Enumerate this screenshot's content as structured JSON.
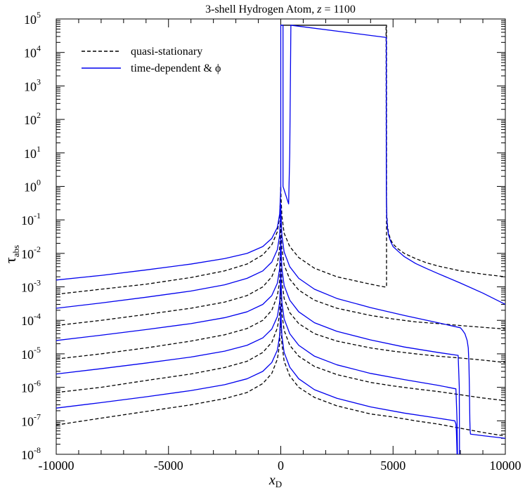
{
  "chart_data": {
    "type": "line",
    "title": "3-shell Hydrogen Atom, z = 1100",
    "title_parts": {
      "prefix": "3-shell Hydrogen Atom, ",
      "var": "z",
      "suffix": " = 1100"
    },
    "xlabel": {
      "main": "x",
      "sub": "D"
    },
    "ylabel": {
      "main": "τ",
      "sub": "abs"
    },
    "xlim": [
      -10000,
      10000
    ],
    "ylim": [
      1e-08,
      100000.0
    ],
    "yscale": "log",
    "xticks": [
      -10000,
      -5000,
      0,
      5000,
      10000
    ],
    "xtick_labels": [
      "-10000",
      "-5000",
      "0",
      "5000",
      "10000"
    ],
    "yticks": [
      -8,
      -7,
      -6,
      -5,
      -4,
      -3,
      -2,
      -1,
      0,
      1,
      2,
      3,
      4,
      5
    ],
    "ytick_labels": [
      {
        "b": "10",
        "e": "-8"
      },
      {
        "b": "10",
        "e": "-7"
      },
      {
        "b": "10",
        "e": "-6"
      },
      {
        "b": "10",
        "e": "-5"
      },
      {
        "b": "10",
        "e": "-4"
      },
      {
        "b": "10",
        "e": "-3"
      },
      {
        "b": "10",
        "e": "-2"
      },
      {
        "b": "10",
        "e": "-1"
      },
      {
        "b": "10",
        "e": "0"
      },
      {
        "b": "10",
        "e": "1"
      },
      {
        "b": "10",
        "e": "2"
      },
      {
        "b": "10",
        "e": "3"
      },
      {
        "b": "10",
        "e": "4"
      },
      {
        "b": "10",
        "e": "5"
      }
    ],
    "legend_position": "top-left",
    "grid": false,
    "colors": {
      "quasi": "#000000",
      "time": "#0000ee"
    },
    "legend": [
      {
        "name": "quasi-stationary",
        "style": "dashed",
        "color": "#000000"
      },
      {
        "name": "time-dependent & ϕ",
        "style": "solid",
        "color": "#0000ee"
      }
    ],
    "series": [
      {
        "name": "quasi-stationary",
        "line": 1,
        "color": "#000000",
        "dash": true,
        "x": [
          -10000,
          -8000,
          -6000,
          -4000,
          -2500,
          -1500,
          -800,
          -400,
          -150,
          -50,
          -10,
          0,
          10,
          50,
          150,
          400,
          800,
          1500,
          2500,
          4000,
          5000,
          6000,
          7000,
          8000,
          9000,
          10000
        ],
        "y": [
          7.5e-08,
          1.2e-07,
          1.9e-07,
          3e-07,
          4.6e-07,
          7e-07,
          1.3e-06,
          2.6e-06,
          7e-06,
          2e-05,
          0.0001,
          0.0002,
          8e-05,
          2e-05,
          6e-06,
          2.2e-06,
          1e-06,
          5e-07,
          2.8e-07,
          1.6e-07,
          1.3e-07,
          1e-07,
          8e-08,
          6e-08,
          4.5e-08,
          3.5e-08
        ]
      },
      {
        "name": "quasi-stationary",
        "line": 2,
        "color": "#000000",
        "dash": true,
        "x": [
          -10000,
          -8000,
          -6000,
          -4000,
          -2500,
          -1500,
          -800,
          -400,
          -150,
          -50,
          -10,
          0,
          10,
          50,
          150,
          400,
          800,
          1500,
          2500,
          4000,
          5000,
          6000,
          7000,
          8000,
          9000,
          10000
        ],
        "y": [
          7e-07,
          1e-06,
          1.6e-06,
          2.5e-06,
          3.9e-06,
          6e-06,
          1.1e-05,
          2.2e-05,
          6e-05,
          0.00016,
          0.0007,
          0.0012,
          0.0006,
          0.00016,
          5e-05,
          1.8e-05,
          8.5e-06,
          4.2e-06,
          2.4e-06,
          1.4e-06,
          1.1e-06,
          9e-07,
          7.5e-07,
          6e-07,
          4.8e-07,
          4e-07
        ]
      },
      {
        "name": "quasi-stationary",
        "line": 3,
        "color": "#000000",
        "dash": true,
        "x": [
          -10000,
          -8000,
          -6000,
          -4000,
          -2500,
          -1500,
          -800,
          -400,
          -150,
          -50,
          -10,
          0,
          10,
          50,
          150,
          400,
          800,
          1500,
          2500,
          4000,
          5000,
          6000,
          7000,
          8000,
          9000,
          10000
        ],
        "y": [
          7e-06,
          1e-05,
          1.5e-05,
          2.4e-05,
          3.7e-05,
          5.7e-05,
          0.0001,
          0.0002,
          0.00055,
          0.0015,
          0.006,
          0.01,
          0.005,
          0.0015,
          0.00045,
          0.00017,
          8e-05,
          4e-05,
          2.4e-05,
          1.5e-05,
          1.2e-05,
          1e-05,
          8.5e-06,
          7.5e-06,
          6.5e-06,
          5.5e-06
        ]
      },
      {
        "name": "quasi-stationary",
        "line": 4,
        "color": "#000000",
        "dash": true,
        "x": [
          -10000,
          -8000,
          -6000,
          -4000,
          -2500,
          -1500,
          -800,
          -400,
          -150,
          -50,
          -10,
          0,
          10,
          50,
          150,
          400,
          800,
          1500,
          2500,
          4000,
          5000,
          6000,
          7000,
          8000,
          9000,
          10000
        ],
        "y": [
          7e-05,
          0.0001,
          0.00015,
          0.00023,
          0.00035,
          0.00055,
          0.001,
          0.002,
          0.005,
          0.014,
          0.05,
          0.1,
          0.05,
          0.014,
          0.0045,
          0.0017,
          0.0008,
          0.0004,
          0.00023,
          0.00014,
          0.00011,
          9e-05,
          8e-05,
          7e-05,
          6.2e-05,
          5.5e-05
        ]
      },
      {
        "name": "quasi-stationary",
        "line": 5,
        "color": "#000000",
        "dash": true,
        "x": [
          -10000,
          -8000,
          -6000,
          -4000,
          -2500,
          -1500,
          -800,
          -400,
          -150,
          -50,
          -10,
          0,
          10,
          50,
          150,
          400,
          800,
          1500,
          2500,
          4000,
          4600,
          4680,
          4700,
          4710,
          4710,
          400,
          400,
          100,
          30,
          30,
          50,
          150,
          400,
          1000,
          2000,
          3000,
          4000,
          4300,
          4500,
          4600,
          4650,
          4690,
          4690,
          4700,
          4710,
          4720,
          4750,
          4800,
          4900,
          5000,
          5200,
          5500,
          6000,
          6500,
          7000,
          8000,
          9000,
          10000
        ],
        "y": [
          0.0006,
          0.00085,
          0.0012,
          0.0019,
          0.003,
          0.0048,
          0.009,
          0.018,
          0.045,
          0.13,
          0.5,
          1.0,
          0.5,
          0.13,
          0.04,
          0.016,
          0.0075,
          0.0036,
          0.002,
          0.0012,
          0.001,
          0.001,
          0.001,
          0.001,
          65000.0,
          65000.0,
          65000.0,
          65000.0,
          65000.0,
          65000.0,
          65000.0,
          65000.0,
          65000.0,
          65000.0,
          65000.0,
          65000.0,
          65000.0,
          65000.0,
          65000.0,
          65000.0,
          65000.0,
          65000.0,
          65000.0,
          1.0,
          0.3,
          0.15,
          0.07,
          0.04,
          0.025,
          0.019,
          0.014,
          0.01,
          0.007,
          0.0052,
          0.0042,
          0.003,
          0.0024,
          0.002
        ]
      },
      {
        "name": "time-dependent & ϕ",
        "line": 1,
        "color": "#0000ee",
        "dash": false,
        "x": [
          -10000,
          -8000,
          -6000,
          -4000,
          -2500,
          -1500,
          -800,
          -400,
          -150,
          -50,
          -10,
          0,
          10,
          50,
          150,
          400,
          800,
          1500,
          2500,
          4000,
          5500,
          7000,
          7750,
          7800,
          7820,
          7830,
          7840,
          7850,
          7880
        ],
        "y": [
          2.4e-07,
          3.5e-07,
          5.2e-07,
          8e-07,
          1.2e-06,
          1.8e-06,
          3e-06,
          5.5e-06,
          1.3e-05,
          3.5e-05,
          0.00015,
          0.0003,
          0.00015,
          3.5e-05,
          1.1e-05,
          4e-06,
          1.8e-06,
          8.5e-07,
          4.7e-07,
          2.6e-07,
          1.7e-07,
          1.2e-07,
          1e-07,
          8e-08,
          5e-08,
          3e-08,
          1.8e-08,
          1e-08,
          1e-08
        ]
      },
      {
        "name": "time-dependent & ϕ",
        "line": 2,
        "color": "#0000ee",
        "dash": false,
        "x": [
          -10000,
          -8000,
          -6000,
          -4000,
          -2500,
          -1500,
          -800,
          -400,
          -150,
          -50,
          -10,
          0,
          10,
          50,
          150,
          400,
          800,
          1500,
          2500,
          4000,
          5500,
          7000,
          7800,
          7850,
          7870,
          7880,
          7890,
          7900
        ],
        "y": [
          2.5e-06,
          3.6e-06,
          5.3e-06,
          8e-06,
          1.2e-05,
          1.8e-05,
          3e-05,
          5.5e-05,
          0.00013,
          0.00035,
          0.0015,
          0.003,
          0.0015,
          0.00035,
          0.00011,
          4e-05,
          1.8e-05,
          8.5e-06,
          4.7e-06,
          2.6e-06,
          1.7e-06,
          1.15e-06,
          9e-07,
          1e-07,
          1e-08,
          1e-08,
          1e-08,
          1e-08
        ]
      },
      {
        "name": "time-dependent & ϕ",
        "line": 3,
        "color": "#0000ee",
        "dash": false,
        "x": [
          -10000,
          -8000,
          -6000,
          -4000,
          -2500,
          -1500,
          -800,
          -400,
          -150,
          -50,
          -10,
          0,
          10,
          50,
          150,
          400,
          800,
          1500,
          2500,
          4000,
          5500,
          7000,
          7900,
          7950,
          7960,
          7970,
          7980
        ],
        "y": [
          2.5e-05,
          3.6e-05,
          5.3e-05,
          8e-05,
          0.00012,
          0.00018,
          0.0003,
          0.00055,
          0.0013,
          0.0035,
          0.015,
          0.03,
          0.015,
          0.0035,
          0.0011,
          0.0004,
          0.00018,
          8.5e-05,
          4.7e-05,
          2.6e-05,
          1.6e-05,
          1.1e-05,
          9e-06,
          1e-06,
          1e-08,
          1e-08,
          1e-08
        ]
      },
      {
        "name": "time-dependent & ϕ",
        "line": 4,
        "color": "#0000ee",
        "dash": false,
        "x": [
          -10000,
          -8000,
          -6000,
          -4000,
          -2500,
          -1500,
          -800,
          -400,
          -150,
          -50,
          -10,
          0,
          10,
          50,
          150,
          400,
          800,
          1500,
          2500,
          4000,
          5500,
          7000,
          8000,
          8100,
          8200,
          8300,
          8350,
          8380,
          8400,
          8420,
          8430,
          8440,
          8450,
          9000,
          10000
        ],
        "y": [
          0.00023,
          0.00033,
          0.00049,
          0.00075,
          0.00115,
          0.0018,
          0.003,
          0.0055,
          0.013,
          0.035,
          0.15,
          0.3,
          0.15,
          0.035,
          0.011,
          0.004,
          0.0018,
          0.00085,
          0.00045,
          0.00024,
          0.00014,
          8.5e-05,
          6e-05,
          5e-05,
          4e-05,
          2.5e-05,
          1.5e-05,
          5e-06,
          1e-06,
          1e-07,
          6e-08,
          4.5e-08,
          4e-08,
          3.6e-08,
          3e-08
        ]
      },
      {
        "name": "time-dependent & ϕ",
        "line": 5,
        "color": "#0000ee",
        "dash": false,
        "x": [
          -10000,
          -8000,
          -6000,
          -4000,
          -2500,
          -1500,
          -800,
          -400,
          -150,
          -50,
          -10,
          0,
          0,
          20,
          30,
          50,
          100,
          100,
          350,
          400,
          450,
          4700,
          4700,
          4710,
          4720,
          4750,
          4800,
          4900,
          5000,
          5200,
          5500,
          6000,
          6500,
          7000,
          8000,
          9000,
          10000
        ],
        "y": [
          0.0016,
          0.0022,
          0.0032,
          0.0048,
          0.007,
          0.01,
          0.016,
          0.028,
          0.06,
          0.15,
          0.6,
          1.0,
          65000.0,
          65000.0,
          65000.0,
          65000.0,
          65000.0,
          1,
          0.3,
          10.0,
          65000.0,
          28000.0,
          1.0,
          0.3,
          0.12,
          0.06,
          0.035,
          0.022,
          0.016,
          0.012,
          0.008,
          0.005,
          0.0035,
          0.0025,
          0.0013,
          0.00065,
          0.0003
        ]
      }
    ]
  }
}
